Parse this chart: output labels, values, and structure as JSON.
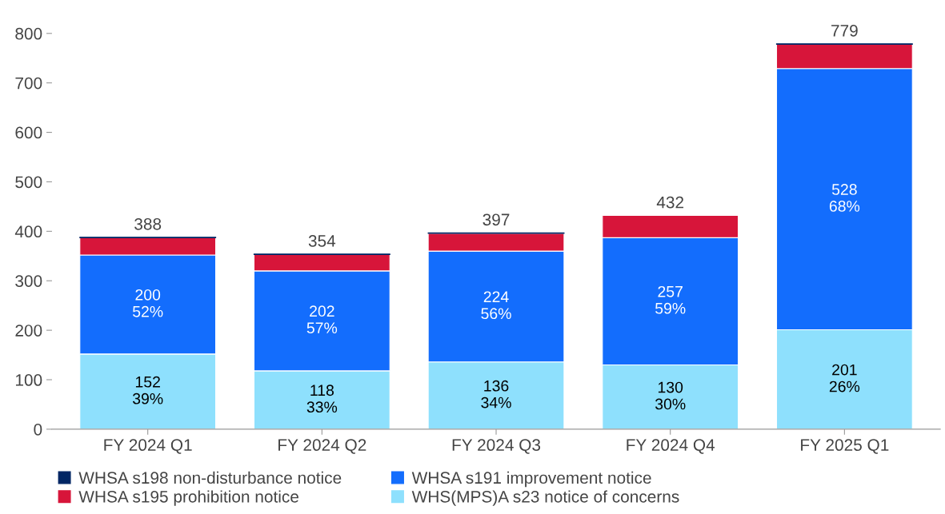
{
  "chart_data": {
    "type": "bar",
    "stacked": true,
    "categories": [
      "FY 2024 Q1",
      "FY 2024 Q2",
      "FY 2024 Q3",
      "FY 2024 Q4",
      "FY 2025 Q1"
    ],
    "series": [
      {
        "name": "WHS(MPS)A s23 notice of concerns",
        "color": "#8ee0fd",
        "values": [
          152,
          118,
          136,
          130,
          201
        ],
        "value_labels": [
          "152\n39%",
          "118\n33%",
          "136\n34%",
          "130\n30%",
          "201\n26%"
        ]
      },
      {
        "name": "WHSA s191 improvement notice",
        "color": "#136dfd",
        "values": [
          200,
          202,
          224,
          257,
          528
        ],
        "value_labels": [
          "200\n52%",
          "202\n57%",
          "224\n56%",
          "257\n59%",
          "528\n68%"
        ]
      },
      {
        "name": "WHSA s195 prohibition notice",
        "color": "#d7153a",
        "values": [
          35,
          33,
          36,
          45,
          49
        ]
      },
      {
        "name": "WHSA s198 non-disturbance notice",
        "color": "#002664",
        "values": [
          1,
          1,
          1,
          null,
          1
        ]
      }
    ],
    "totals": [
      "388",
      "354",
      "397",
      "432",
      "779"
    ],
    "ylim": [
      0,
      800
    ],
    "yticks": [
      0,
      100,
      200,
      300,
      400,
      500,
      600,
      700,
      800
    ],
    "grid": false,
    "legend": "bottom"
  }
}
